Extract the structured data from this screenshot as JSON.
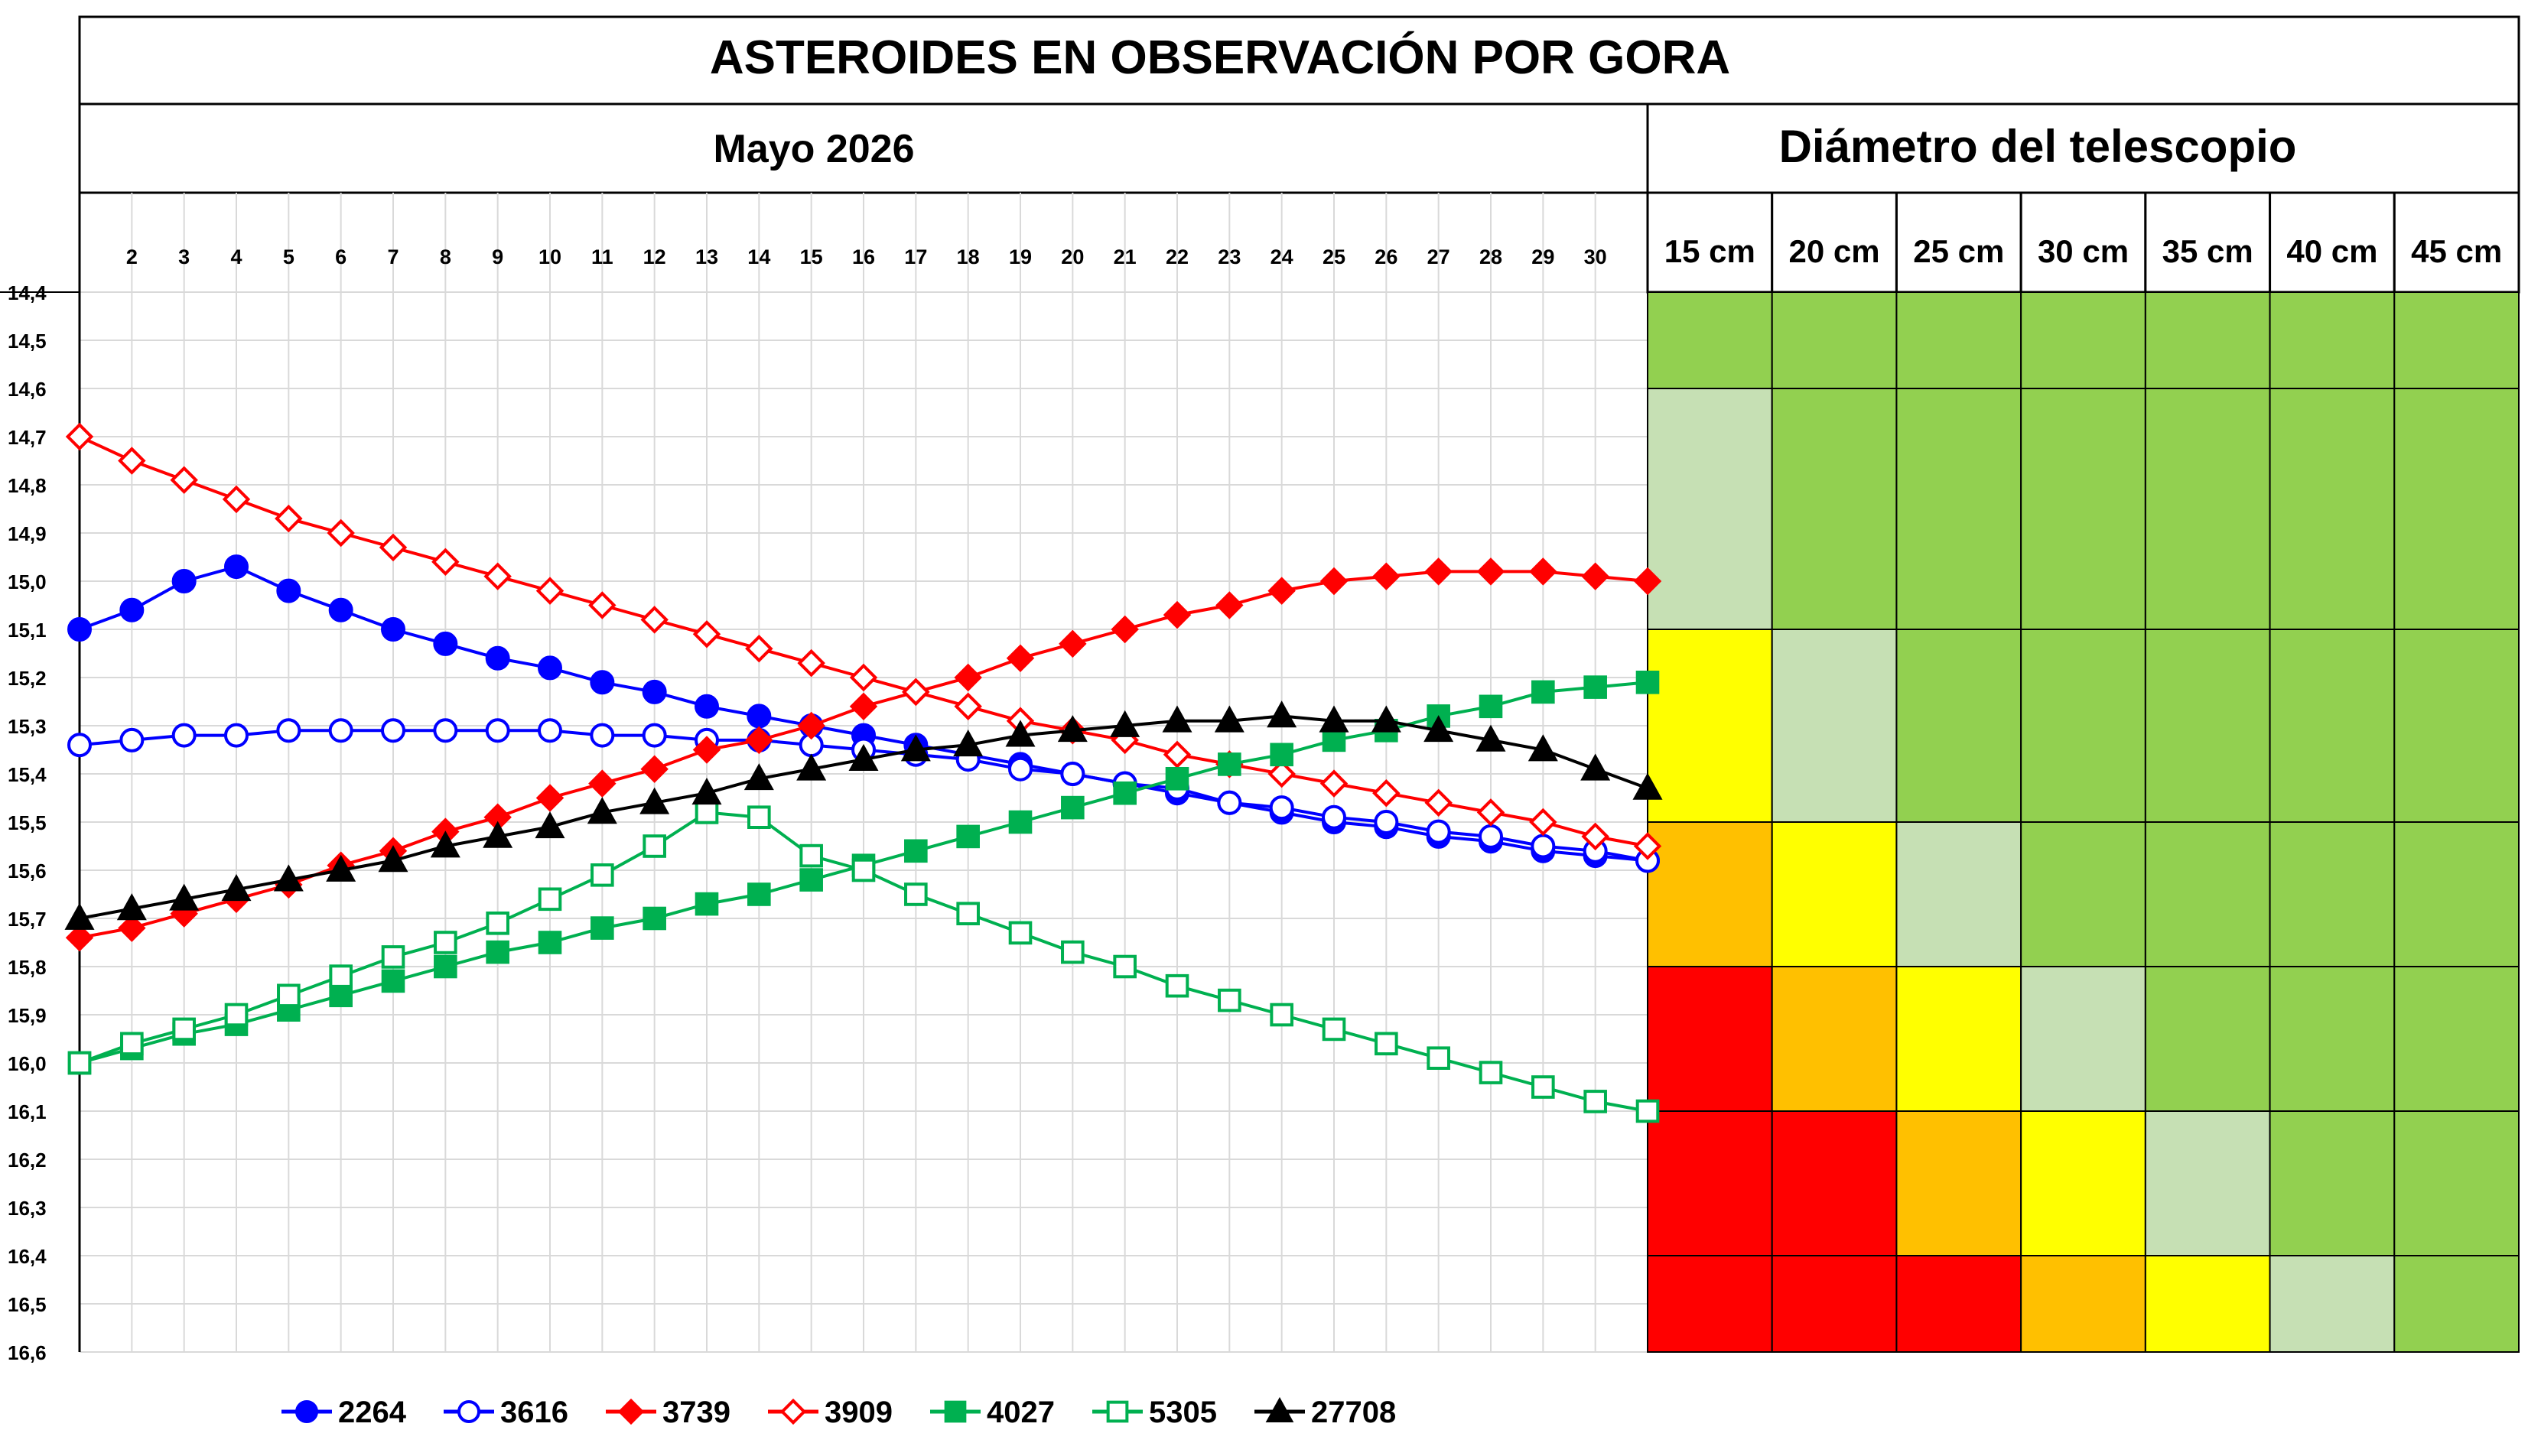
{
  "chart_data": {
    "type": "line",
    "title": "ASTEROIDES EN OBSERVACIÓN POR GORA",
    "subtitle": "Mayo 2026",
    "scale_title": "Diámetro del telescopio",
    "xlabel": "",
    "ylabel": "",
    "x": [
      1,
      2,
      3,
      4,
      5,
      6,
      7,
      8,
      9,
      10,
      11,
      12,
      13,
      14,
      15,
      16,
      17,
      18,
      19,
      20,
      21,
      22,
      23,
      24,
      25,
      26,
      27,
      28,
      29,
      30,
      31
    ],
    "x_tick_labels": [
      "2",
      "3",
      "4",
      "5",
      "6",
      "7",
      "8",
      "9",
      "10",
      "11",
      "12",
      "13",
      "14",
      "15",
      "16",
      "17",
      "18",
      "19",
      "20",
      "21",
      "22",
      "23",
      "24",
      "25",
      "26",
      "27",
      "28",
      "29",
      "30"
    ],
    "y_ticks": [
      "14,4",
      "14,5",
      "14,6",
      "14,7",
      "14,8",
      "14,9",
      "15,0",
      "15,1",
      "15,2",
      "15,3",
      "15,4",
      "15,5",
      "15,6",
      "15,7",
      "15,8",
      "15,9",
      "16,0",
      "16,1",
      "16,2",
      "16,3",
      "16,4",
      "16,5",
      "16,6"
    ],
    "ylim": [
      14.4,
      16.6
    ],
    "y_inverted": true,
    "grid": true,
    "legend_position": "bottom",
    "series": [
      {
        "name": "2264",
        "color": "#0000ff",
        "marker": "circle",
        "filled": true,
        "values": [
          15.1,
          15.06,
          15.0,
          14.97,
          15.02,
          15.06,
          15.1,
          15.13,
          15.16,
          15.18,
          15.21,
          15.23,
          15.26,
          15.28,
          15.3,
          15.32,
          15.34,
          15.36,
          15.38,
          15.4,
          15.42,
          15.44,
          15.46,
          15.48,
          15.5,
          15.51,
          15.53,
          15.54,
          15.56,
          15.57,
          15.58
        ]
      },
      {
        "name": "3616",
        "color": "#0000ff",
        "marker": "circle",
        "filled": false,
        "values": [
          15.34,
          15.33,
          15.32,
          15.32,
          15.31,
          15.31,
          15.31,
          15.31,
          15.31,
          15.31,
          15.32,
          15.32,
          15.33,
          15.33,
          15.34,
          15.35,
          15.36,
          15.37,
          15.39,
          15.4,
          15.42,
          15.43,
          15.46,
          15.47,
          15.49,
          15.5,
          15.52,
          15.53,
          15.55,
          15.56,
          15.58
        ]
      },
      {
        "name": "3739",
        "color": "#ff0000",
        "marker": "diamond",
        "filled": true,
        "values": [
          15.74,
          15.72,
          15.69,
          15.66,
          15.63,
          15.59,
          15.56,
          15.52,
          15.49,
          15.45,
          15.42,
          15.39,
          15.35,
          15.33,
          15.3,
          15.26,
          15.23,
          15.2,
          15.16,
          15.13,
          15.1,
          15.07,
          15.05,
          15.02,
          15.0,
          14.99,
          14.98,
          14.98,
          14.98,
          14.99,
          15.0
        ]
      },
      {
        "name": "3909",
        "color": "#ff0000",
        "marker": "diamond",
        "filled": false,
        "values": [
          14.7,
          14.75,
          14.79,
          14.83,
          14.87,
          14.9,
          14.93,
          14.96,
          14.99,
          15.02,
          15.05,
          15.08,
          15.11,
          15.14,
          15.17,
          15.2,
          15.23,
          15.26,
          15.29,
          15.31,
          15.33,
          15.36,
          15.38,
          15.4,
          15.42,
          15.44,
          15.46,
          15.48,
          15.5,
          15.53,
          15.55
        ]
      },
      {
        "name": "4027",
        "color": "#00b050",
        "marker": "square",
        "filled": true,
        "values": [
          16.0,
          15.97,
          15.94,
          15.92,
          15.89,
          15.86,
          15.83,
          15.8,
          15.77,
          15.75,
          15.72,
          15.7,
          15.67,
          15.65,
          15.62,
          15.59,
          15.56,
          15.53,
          15.5,
          15.47,
          15.44,
          15.41,
          15.38,
          15.36,
          15.33,
          15.31,
          15.28,
          15.26,
          15.23,
          15.22,
          15.21
        ]
      },
      {
        "name": "5305",
        "color": "#00b050",
        "marker": "square",
        "filled": false,
        "values": [
          16.0,
          15.96,
          15.93,
          15.9,
          15.86,
          15.82,
          15.78,
          15.75,
          15.71,
          15.66,
          15.61,
          15.55,
          15.48,
          15.49,
          15.57,
          15.6,
          15.65,
          15.69,
          15.73,
          15.77,
          15.8,
          15.84,
          15.87,
          15.9,
          15.93,
          15.96,
          15.99,
          16.02,
          16.05,
          16.08,
          16.1
        ]
      },
      {
        "name": "27708",
        "color": "#000000",
        "marker": "triangle",
        "filled": true,
        "values": [
          15.7,
          15.68,
          15.66,
          15.64,
          15.62,
          15.6,
          15.58,
          15.55,
          15.53,
          15.51,
          15.48,
          15.46,
          15.44,
          15.41,
          15.39,
          15.37,
          15.35,
          15.34,
          15.32,
          15.31,
          15.3,
          15.29,
          15.29,
          15.28,
          15.29,
          15.29,
          15.31,
          15.33,
          15.35,
          15.39,
          15.43
        ]
      }
    ],
    "telescope_table": {
      "columns": [
        "15 cm",
        "20 cm",
        "25 cm",
        "30 cm",
        "35 cm",
        "40 cm",
        "45 cm"
      ],
      "bands": [
        {
          "from": 14.4,
          "to": 14.6,
          "levels": [
            4,
            4,
            4,
            4,
            4,
            4,
            4
          ]
        },
        {
          "from": 14.6,
          "to": 15.1,
          "levels": [
            3,
            4,
            4,
            4,
            4,
            4,
            4
          ]
        },
        {
          "from": 15.1,
          "to": 15.5,
          "levels": [
            2,
            3,
            4,
            4,
            4,
            4,
            4
          ]
        },
        {
          "from": 15.5,
          "to": 15.8,
          "levels": [
            1,
            2,
            3,
            4,
            4,
            4,
            4
          ]
        },
        {
          "from": 15.8,
          "to": 16.1,
          "levels": [
            0,
            1,
            2,
            3,
            4,
            4,
            4
          ]
        },
        {
          "from": 16.1,
          "to": 16.4,
          "levels": [
            0,
            0,
            1,
            2,
            3,
            4,
            4
          ]
        },
        {
          "from": 16.4,
          "to": 16.6,
          "levels": [
            0,
            0,
            0,
            1,
            2,
            3,
            4
          ]
        }
      ],
      "level_colors": [
        "#ff0000",
        "#ffc000",
        "#ffff00",
        "#c6e0b4",
        "#92d050"
      ]
    }
  }
}
